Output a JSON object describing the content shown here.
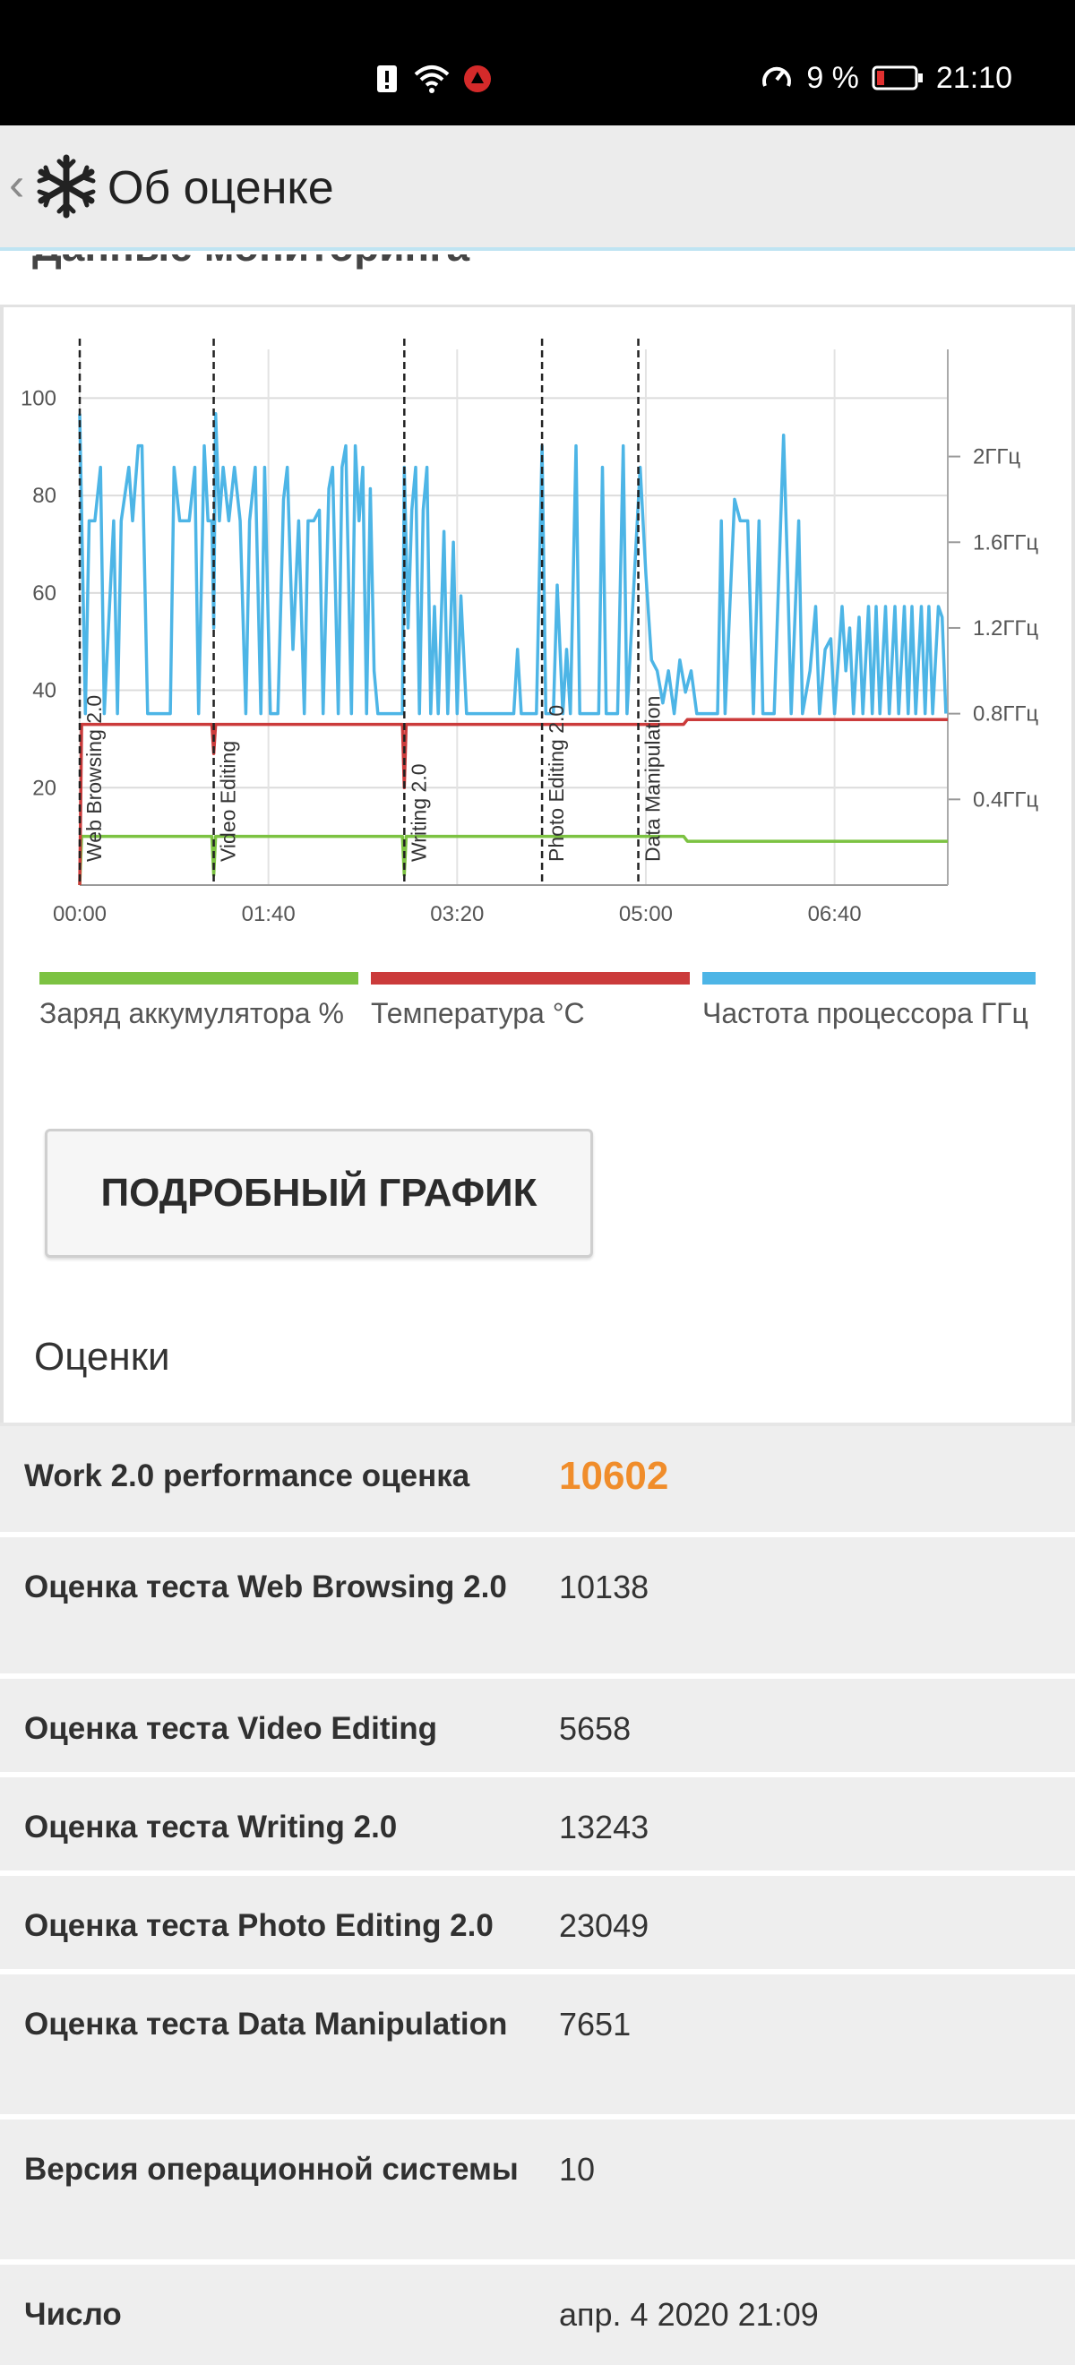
{
  "status_bar": {
    "battery_percent": "9 %",
    "time": "21:10",
    "icons": [
      "alert-icon",
      "wifi-icon",
      "app-notification-icon",
      "data-saver-icon",
      "battery-icon"
    ]
  },
  "app_bar": {
    "title": "Об оценке",
    "icon": "snowflake-logo-icon"
  },
  "cut_heading": "Данные мониторинга",
  "chart_data": {
    "type": "line",
    "x_ticks": [
      "00:00",
      "01:40",
      "03:20",
      "05:00",
      "06:40"
    ],
    "y_left_ticks": [
      "20",
      "40",
      "60",
      "80",
      "100"
    ],
    "y_left_range": [
      0,
      110
    ],
    "y_right_ticks": [
      "0.4ГГц",
      "0.8ГГц",
      "1.2ГГц",
      "1.6ГГц",
      "2ГГц"
    ],
    "y_right_range": [
      0,
      2.5
    ],
    "x_range_minutes": [
      0,
      460
    ],
    "grid": true,
    "markers": [
      {
        "label": "Web Browsing 2.0",
        "time_min": 0
      },
      {
        "label": "Video Editing",
        "time_min": 71
      },
      {
        "label": "Writing 2.0",
        "time_min": 172
      },
      {
        "label": "Photo Editing 2.0",
        "time_min": 245
      },
      {
        "label": "Data Manipulation",
        "time_min": 296
      }
    ],
    "series": [
      {
        "name": "Заряд аккумулятора %",
        "color": "#7cc242",
        "axis": "left",
        "points": [
          [
            0,
            0
          ],
          [
            1,
            10
          ],
          [
            70,
            10
          ],
          [
            71,
            2
          ],
          [
            72,
            10
          ],
          [
            171,
            10
          ],
          [
            172,
            2
          ],
          [
            173,
            10
          ],
          [
            320,
            10
          ],
          [
            322,
            9
          ],
          [
            460,
            9
          ]
        ]
      },
      {
        "name": "Температура °C",
        "color": "#cb3b3b",
        "axis": "left",
        "points": [
          [
            0,
            0
          ],
          [
            1,
            33
          ],
          [
            70,
            33
          ],
          [
            71,
            27
          ],
          [
            72,
            33
          ],
          [
            171,
            33
          ],
          [
            172,
            20
          ],
          [
            173,
            33
          ],
          [
            320,
            33
          ],
          [
            322,
            34
          ],
          [
            460,
            34
          ]
        ]
      },
      {
        "name": "Частота процессора ГГц",
        "color": "#4db5e6",
        "axis": "right",
        "points": [
          [
            0,
            2.2
          ],
          [
            3,
            0.8
          ],
          [
            5,
            1.7
          ],
          [
            8,
            1.7
          ],
          [
            11,
            1.95
          ],
          [
            13,
            0.8
          ],
          [
            18,
            1.7
          ],
          [
            20,
            0.8
          ],
          [
            22,
            1.7
          ],
          [
            26,
            1.95
          ],
          [
            28,
            1.7
          ],
          [
            31,
            2.05
          ],
          [
            33,
            2.05
          ],
          [
            36,
            0.8
          ],
          [
            48,
            0.8
          ],
          [
            50,
            1.95
          ],
          [
            53,
            1.7
          ],
          [
            58,
            1.7
          ],
          [
            61,
            1.95
          ],
          [
            63,
            0.8
          ],
          [
            66,
            2.05
          ],
          [
            68,
            1.7
          ],
          [
            70,
            1.7
          ],
          [
            71,
            1.2
          ],
          [
            72,
            2.2
          ],
          [
            74,
            1.7
          ],
          [
            76,
            1.95
          ],
          [
            79,
            1.7
          ],
          [
            82,
            1.95
          ],
          [
            85,
            1.7
          ],
          [
            88,
            0.8
          ],
          [
            90,
            1.7
          ],
          [
            93,
            1.95
          ],
          [
            96,
            0.8
          ],
          [
            98,
            1.95
          ],
          [
            101,
            0.8
          ],
          [
            105,
            0.8
          ],
          [
            108,
            1.8
          ],
          [
            110,
            1.95
          ],
          [
            113,
            1.1
          ],
          [
            116,
            1.7
          ],
          [
            119,
            0.8
          ],
          [
            121,
            1.7
          ],
          [
            124,
            1.7
          ],
          [
            127,
            1.75
          ],
          [
            129,
            0.8
          ],
          [
            132,
            1.85
          ],
          [
            134,
            1.95
          ],
          [
            137,
            0.8
          ],
          [
            139,
            1.95
          ],
          [
            141,
            2.05
          ],
          [
            144,
            0.8
          ],
          [
            146,
            2.05
          ],
          [
            148,
            1.7
          ],
          [
            150,
            1.95
          ],
          [
            152,
            0.8
          ],
          [
            154,
            1.85
          ],
          [
            156,
            1.0
          ],
          [
            158,
            0.8
          ],
          [
            171,
            0.8
          ],
          [
            172,
            1.95
          ],
          [
            174,
            1.2
          ],
          [
            176,
            1.75
          ],
          [
            178,
            1.95
          ],
          [
            180,
            0.8
          ],
          [
            182,
            1.75
          ],
          [
            184,
            1.95
          ],
          [
            186,
            0.8
          ],
          [
            188,
            1.3
          ],
          [
            190,
            0.8
          ],
          [
            193,
            1.65
          ],
          [
            195,
            0.8
          ],
          [
            198,
            1.6
          ],
          [
            200,
            0.8
          ],
          [
            202,
            1.35
          ],
          [
            205,
            0.8
          ],
          [
            230,
            0.8
          ],
          [
            232,
            1.1
          ],
          [
            234,
            0.8
          ],
          [
            242,
            0.8
          ],
          [
            245,
            2.05
          ],
          [
            247,
            0.8
          ],
          [
            251,
            0.8
          ],
          [
            253,
            1.4
          ],
          [
            256,
            0.8
          ],
          [
            258,
            1.1
          ],
          [
            260,
            0.8
          ],
          [
            263,
            2.05
          ],
          [
            265,
            0.8
          ],
          [
            275,
            0.8
          ],
          [
            277,
            1.95
          ],
          [
            279,
            0.8
          ],
          [
            285,
            0.8
          ],
          [
            288,
            2.05
          ],
          [
            290,
            0.8
          ],
          [
            297,
            1.95
          ],
          [
            300,
            1.45
          ],
          [
            303,
            1.05
          ],
          [
            306,
            1.0
          ],
          [
            309,
            0.85
          ],
          [
            312,
            1.0
          ],
          [
            315,
            0.8
          ],
          [
            318,
            1.05
          ],
          [
            321,
            0.9
          ],
          [
            324,
            1.0
          ],
          [
            327,
            0.8
          ],
          [
            338,
            0.8
          ],
          [
            340,
            1.7
          ],
          [
            342,
            0.8
          ],
          [
            347,
            1.8
          ],
          [
            350,
            1.7
          ],
          [
            354,
            1.7
          ],
          [
            357,
            0.8
          ],
          [
            360,
            1.7
          ],
          [
            362,
            0.8
          ],
          [
            368,
            0.8
          ],
          [
            373,
            2.1
          ],
          [
            375,
            1.5
          ],
          [
            377,
            0.8
          ],
          [
            381,
            1.7
          ],
          [
            383,
            0.8
          ],
          [
            387,
            1.0
          ],
          [
            390,
            1.3
          ],
          [
            392,
            0.8
          ],
          [
            395,
            1.1
          ],
          [
            398,
            1.15
          ],
          [
            400,
            0.8
          ],
          [
            404,
            1.3
          ],
          [
            406,
            1.0
          ],
          [
            408,
            1.2
          ],
          [
            410,
            0.8
          ],
          [
            413,
            1.25
          ],
          [
            415,
            0.8
          ],
          [
            418,
            1.3
          ],
          [
            420,
            0.8
          ],
          [
            422,
            1.3
          ],
          [
            424,
            0.8
          ],
          [
            427,
            1.3
          ],
          [
            429,
            0.8
          ],
          [
            432,
            1.3
          ],
          [
            434,
            0.8
          ],
          [
            437,
            1.3
          ],
          [
            439,
            0.8
          ],
          [
            441,
            1.3
          ],
          [
            443,
            0.8
          ],
          [
            446,
            1.3
          ],
          [
            448,
            0.8
          ],
          [
            450,
            1.3
          ],
          [
            452,
            0.8
          ],
          [
            455,
            1.3
          ],
          [
            457,
            1.25
          ],
          [
            459,
            0.8
          ]
        ]
      }
    ]
  },
  "legend": [
    {
      "label": "Заряд аккумулятора %",
      "color": "#7cc242"
    },
    {
      "label": "Температура °C",
      "color": "#cb3b3b"
    },
    {
      "label": "Частота процессора ГГц",
      "color": "#4db5e6"
    }
  ],
  "detail_button": "ПОДРОБНЫЙ ГРАФИК",
  "scores_title": "Оценки",
  "scores": [
    {
      "label": "Work 2.0 performance оценка",
      "value": "10602",
      "highlight": true
    },
    {
      "label": "Оценка теста Web Browsing 2.0",
      "value": "10138"
    },
    {
      "label": "Оценка теста Video Editing",
      "value": "5658"
    },
    {
      "label": "Оценка теста Writing 2.0",
      "value": "13243"
    },
    {
      "label": "Оценка теста Photo Editing 2.0",
      "value": "23049"
    },
    {
      "label": "Оценка теста Data Manipulation",
      "value": "7651"
    },
    {
      "label": "Версия операционной системы",
      "value": "10"
    },
    {
      "label": "Число",
      "value": "апр. 4 2020 21:09"
    }
  ]
}
